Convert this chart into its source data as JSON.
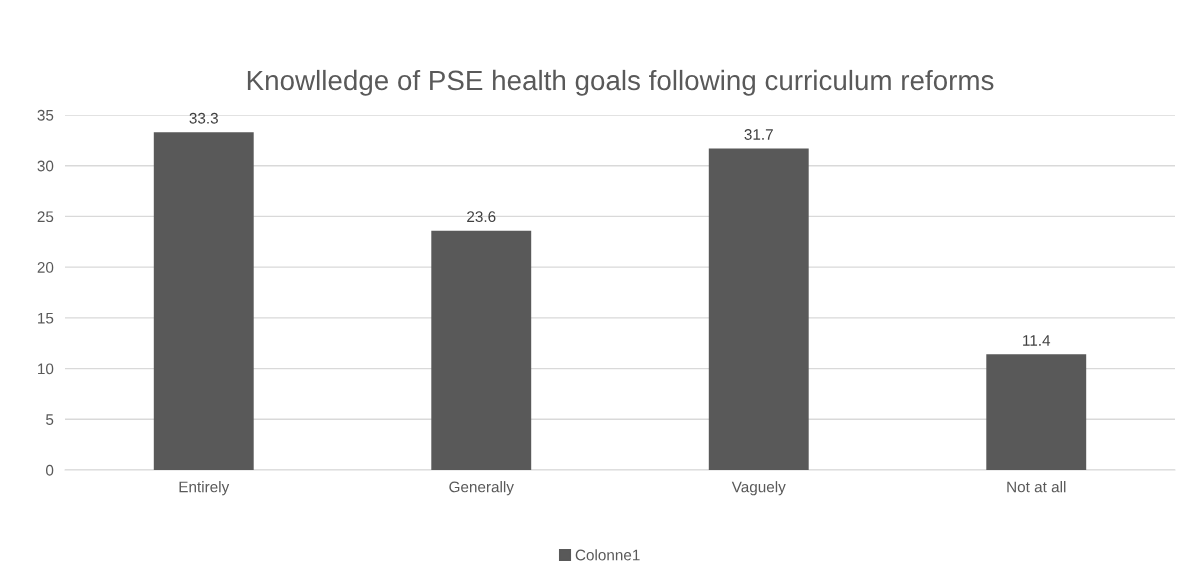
{
  "chart_data": {
    "type": "bar",
    "title": "Knowlledge of PSE health goals following curriculum reforms",
    "categories": [
      "Entirely",
      "Generally",
      "Vaguely",
      "Not at all"
    ],
    "series": [
      {
        "name": "Colonne1",
        "color": "#595959",
        "values": [
          33.3,
          23.6,
          31.7,
          11.4
        ]
      }
    ],
    "ylim": [
      0,
      35
    ],
    "yticks": [
      0,
      5,
      10,
      15,
      20,
      25,
      30,
      35
    ],
    "grid": "y",
    "legend": "bottom",
    "data_labels": true
  }
}
